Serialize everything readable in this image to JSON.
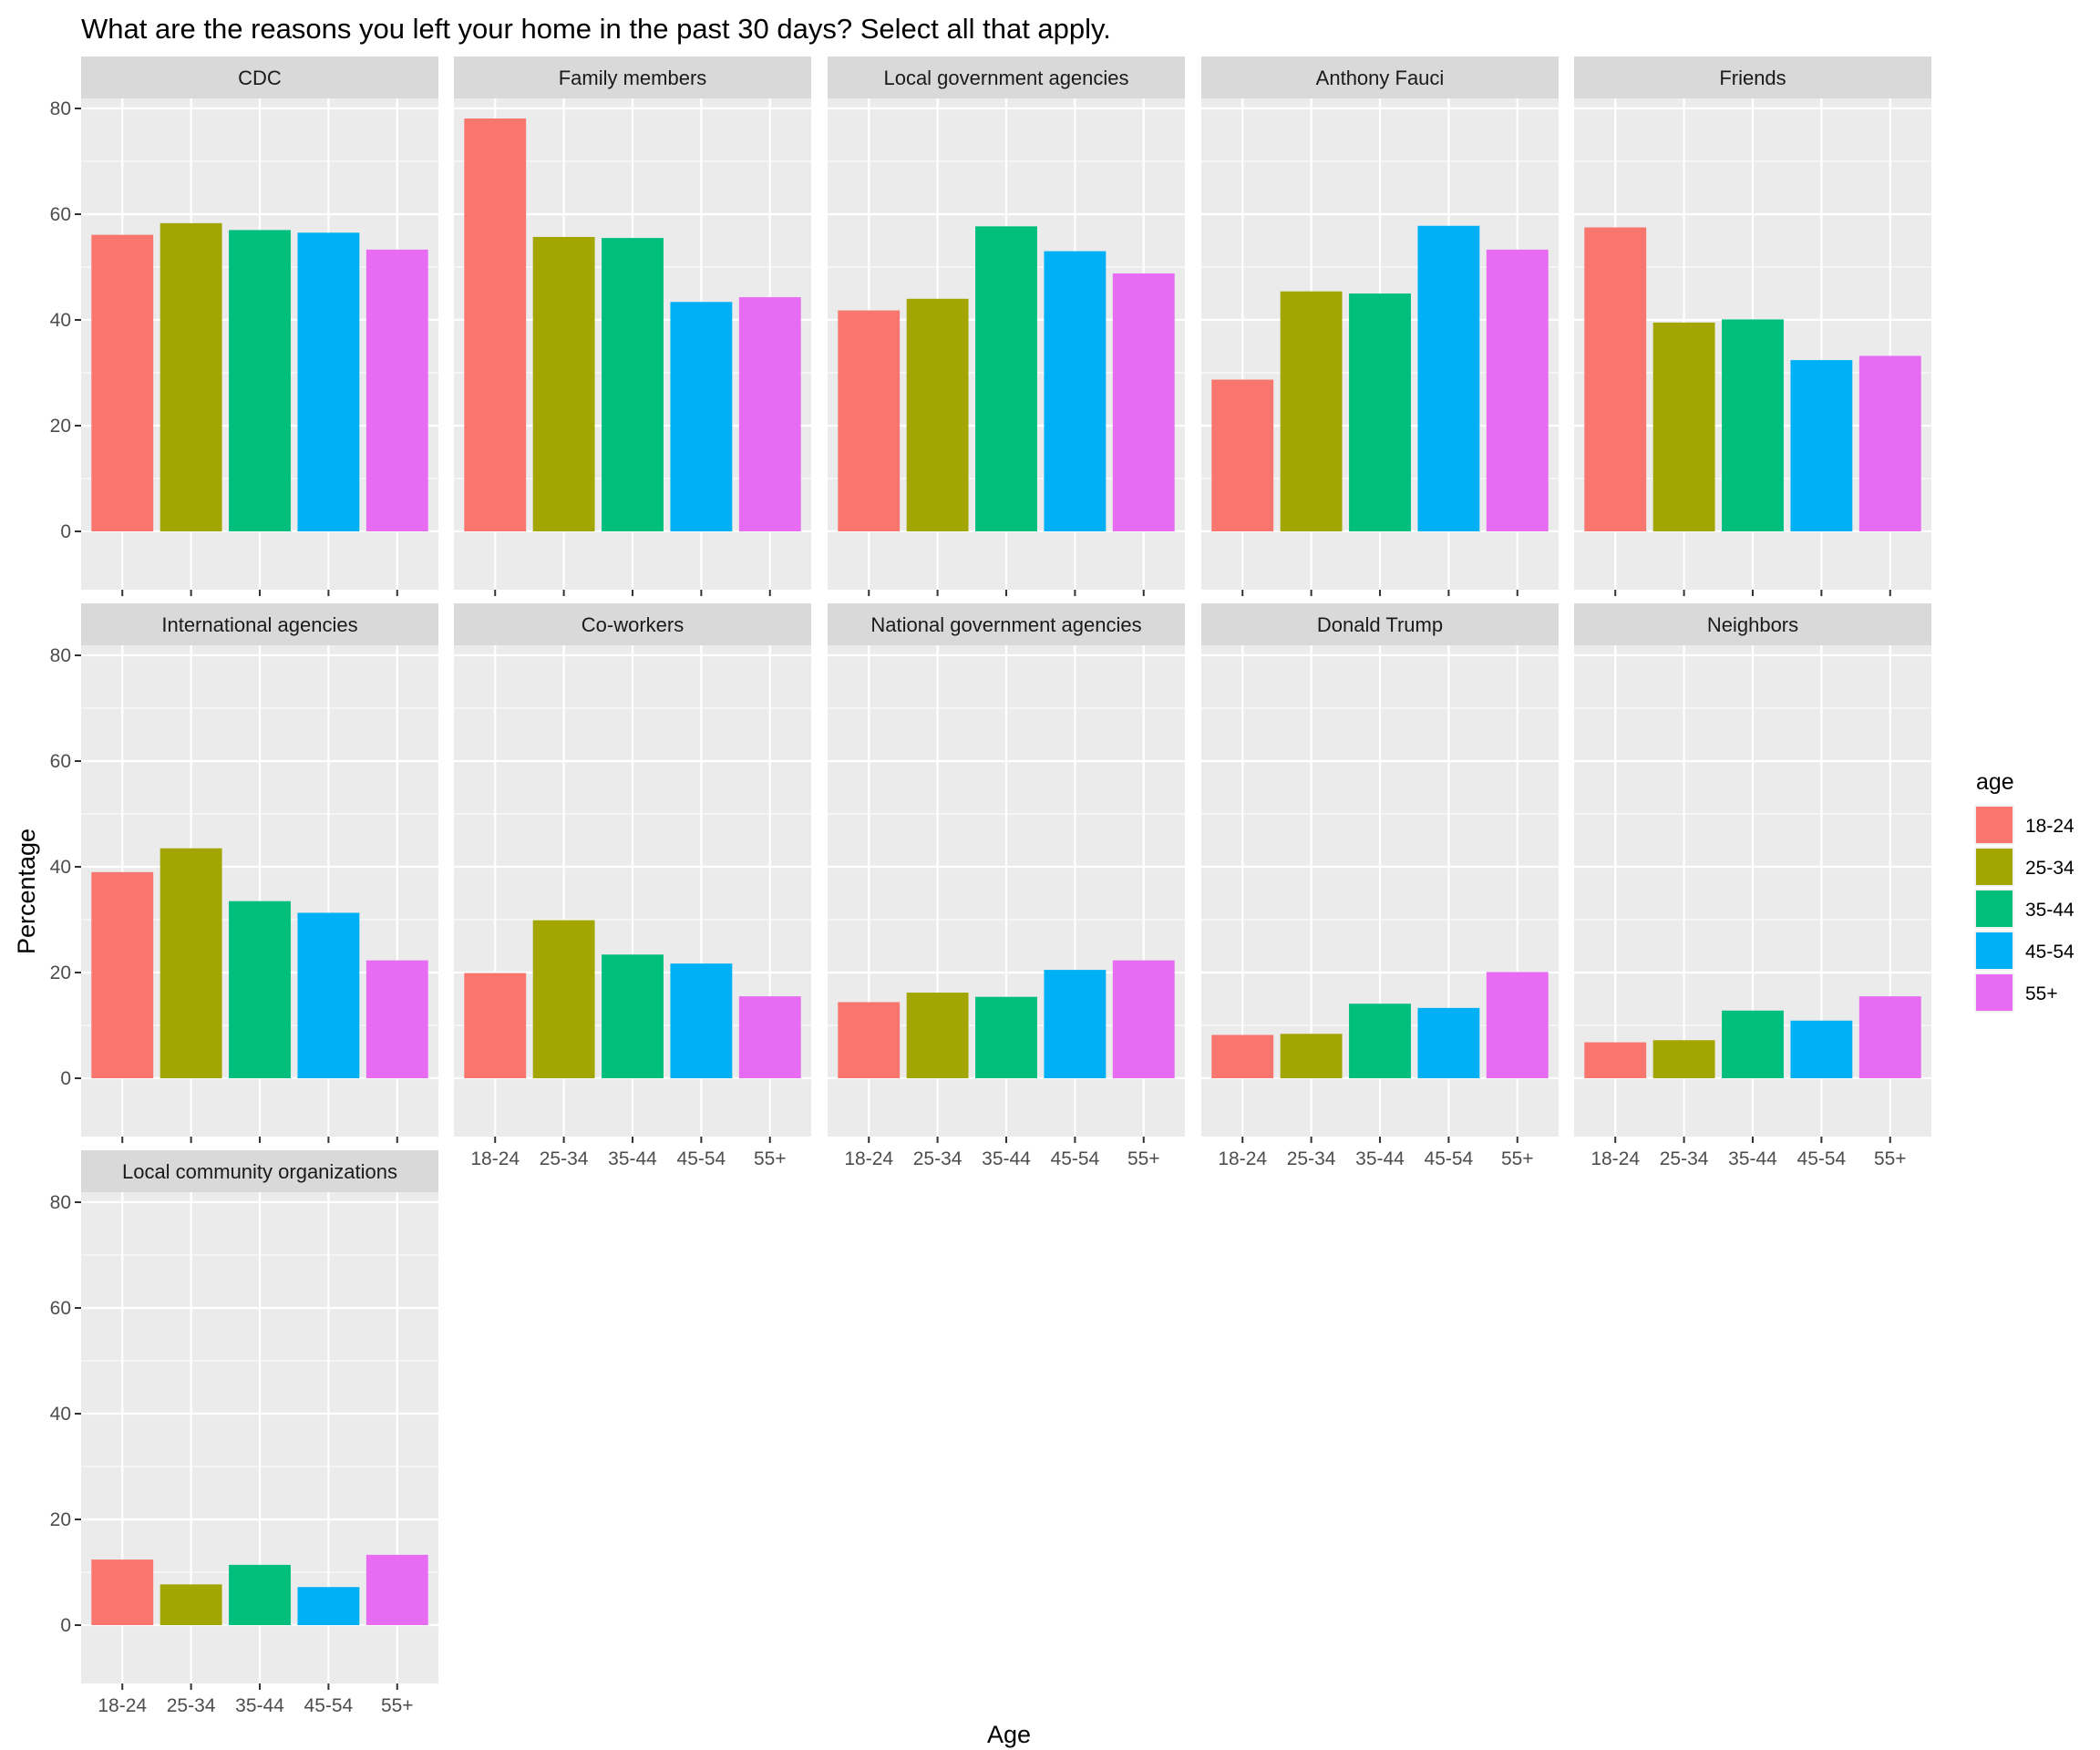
{
  "chart_data": {
    "type": "bar",
    "title": "What are the reasons you left your home in the past 30 days? Select all that apply.",
    "xlabel": "Age",
    "ylabel": "Percentage",
    "ylim": [
      0,
      80
    ],
    "yticks": [
      0,
      20,
      40,
      60,
      80
    ],
    "grid": true,
    "facet_by": "source",
    "categories": [
      "18-24",
      "25-34",
      "35-44",
      "45-54",
      "55+"
    ],
    "legend": {
      "title": "age",
      "placement": "right",
      "entries": [
        {
          "label": "18-24",
          "color": "#F8766D"
        },
        {
          "label": "25-34",
          "color": "#A3A500"
        },
        {
          "label": "35-44",
          "color": "#00BF7D"
        },
        {
          "label": "45-54",
          "color": "#00B0F6"
        },
        {
          "label": "55+",
          "color": "#E76BF3"
        }
      ]
    },
    "panels": [
      {
        "name": "CDC",
        "values": [
          56.1,
          58.3,
          57.0,
          56.5,
          53.3
        ]
      },
      {
        "name": "Family members",
        "values": [
          78.1,
          55.7,
          55.5,
          43.4,
          44.3
        ]
      },
      {
        "name": "Local government agencies",
        "values": [
          41.8,
          44.0,
          57.7,
          53.0,
          48.8
        ]
      },
      {
        "name": "Anthony Fauci",
        "values": [
          28.7,
          45.4,
          45.0,
          57.8,
          53.3
        ]
      },
      {
        "name": "Friends",
        "values": [
          57.5,
          39.5,
          40.1,
          32.4,
          33.2
        ]
      },
      {
        "name": "International agencies",
        "values": [
          39.0,
          43.5,
          33.5,
          31.3,
          22.3
        ]
      },
      {
        "name": "Co-workers",
        "values": [
          19.9,
          29.9,
          23.4,
          21.7,
          15.5
        ]
      },
      {
        "name": "National government agencies",
        "values": [
          14.4,
          16.2,
          15.4,
          20.5,
          22.3
        ]
      },
      {
        "name": "Donald Trump",
        "values": [
          8.2,
          8.4,
          14.1,
          13.3,
          20.1
        ]
      },
      {
        "name": "Neighbors",
        "values": [
          6.8,
          7.2,
          12.8,
          10.9,
          15.5
        ]
      },
      {
        "name": "Local community organizations",
        "values": [
          12.4,
          7.7,
          11.4,
          7.2,
          13.3
        ]
      }
    ]
  }
}
